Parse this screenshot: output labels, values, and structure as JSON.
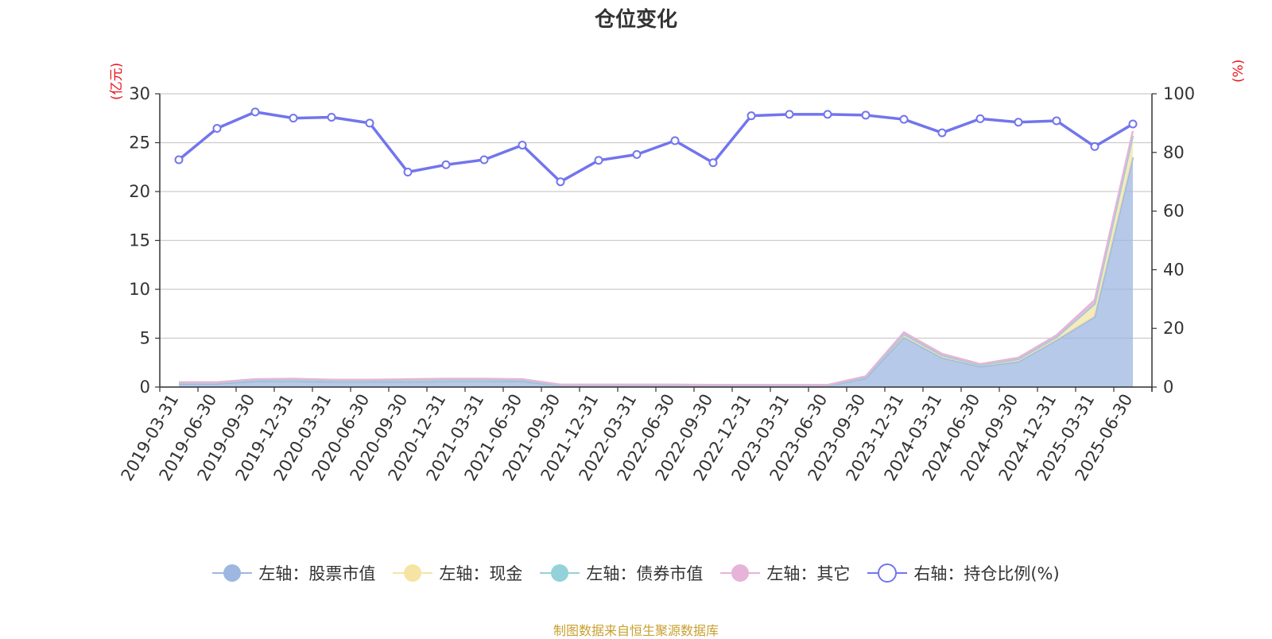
{
  "title": "仓位变化",
  "left_unit": "(亿元)",
  "right_unit": "(%)",
  "source": "制图数据来自恒生聚源数据库",
  "legend": [
    {
      "label": "左轴：股票市值",
      "color": "#9db7e0",
      "marker": "filled"
    },
    {
      "label": "左轴：现金",
      "color": "#f6e4a4",
      "marker": "filled"
    },
    {
      "label": "左轴：债券市值",
      "color": "#93d2d8",
      "marker": "filled"
    },
    {
      "label": "左轴：其它",
      "color": "#e6b4d8",
      "marker": "filled"
    },
    {
      "label": "右轴：持仓比例(%)",
      "color": "#7275ec",
      "marker": "hollow"
    }
  ],
  "chart_data": {
    "type": "area",
    "categories": [
      "2019-03-31",
      "2019-06-30",
      "2019-09-30",
      "2019-12-31",
      "2020-03-31",
      "2020-06-30",
      "2020-09-30",
      "2020-12-31",
      "2021-03-31",
      "2021-06-30",
      "2021-09-30",
      "2021-12-31",
      "2022-03-31",
      "2022-06-30",
      "2022-09-30",
      "2022-12-31",
      "2023-03-31",
      "2023-06-30",
      "2023-09-30",
      "2023-12-31",
      "2024-03-31",
      "2024-06-30",
      "2024-09-30",
      "2024-12-31",
      "2025-03-31",
      "2025-06-30"
    ],
    "left_axis": {
      "ylim": [
        0,
        30
      ],
      "ticks": [
        0,
        5,
        10,
        15,
        20,
        25,
        30
      ]
    },
    "right_axis": {
      "ylim": [
        0,
        100
      ],
      "ticks": [
        0,
        20,
        40,
        60,
        80,
        100
      ]
    },
    "stacked_series": [
      {
        "name": "左轴：股票市值",
        "color": "#9db7e0",
        "values": [
          0.35,
          0.35,
          0.6,
          0.6,
          0.55,
          0.55,
          0.55,
          0.6,
          0.6,
          0.6,
          0.15,
          0.15,
          0.15,
          0.15,
          0.12,
          0.12,
          0.12,
          0.12,
          0.9,
          5.1,
          3.0,
          2.1,
          2.6,
          4.8,
          7.2,
          23.5
        ]
      },
      {
        "name": "左轴：现金",
        "color": "#f6e4a4",
        "values": [
          0.1,
          0.1,
          0.1,
          0.15,
          0.1,
          0.1,
          0.15,
          0.15,
          0.15,
          0.1,
          0.05,
          0.05,
          0.05,
          0.05,
          0.05,
          0.05,
          0.05,
          0.05,
          0.1,
          0.3,
          0.25,
          0.15,
          0.25,
          0.3,
          1.3,
          2.2
        ]
      },
      {
        "name": "左轴：债券市值",
        "color": "#93d2d8",
        "values": [
          0,
          0,
          0,
          0,
          0,
          0,
          0,
          0,
          0,
          0,
          0,
          0,
          0,
          0,
          0,
          0,
          0,
          0,
          0,
          0,
          0,
          0,
          0,
          0,
          0,
          0
        ]
      },
      {
        "name": "左轴：其它",
        "color": "#e6b4d8",
        "values": [
          0.05,
          0.05,
          0.1,
          0.1,
          0.1,
          0.1,
          0.1,
          0.1,
          0.1,
          0.1,
          0.05,
          0.05,
          0.05,
          0.05,
          0.05,
          0.05,
          0.05,
          0.05,
          0.1,
          0.2,
          0.15,
          0.1,
          0.15,
          0.2,
          0.4,
          0.5
        ]
      }
    ],
    "line_series": {
      "name": "右轴：持仓比例(%)",
      "color": "#7275ec",
      "axis": "right",
      "values": [
        77.5,
        88.2,
        93.8,
        91.7,
        92.0,
        90.0,
        73.3,
        75.8,
        77.5,
        82.5,
        70.0,
        77.3,
        79.3,
        84.0,
        76.5,
        92.5,
        93.0,
        93.0,
        92.7,
        91.3,
        86.7,
        91.5,
        90.3,
        90.8,
        82.0,
        89.7
      ]
    },
    "grid": true
  }
}
